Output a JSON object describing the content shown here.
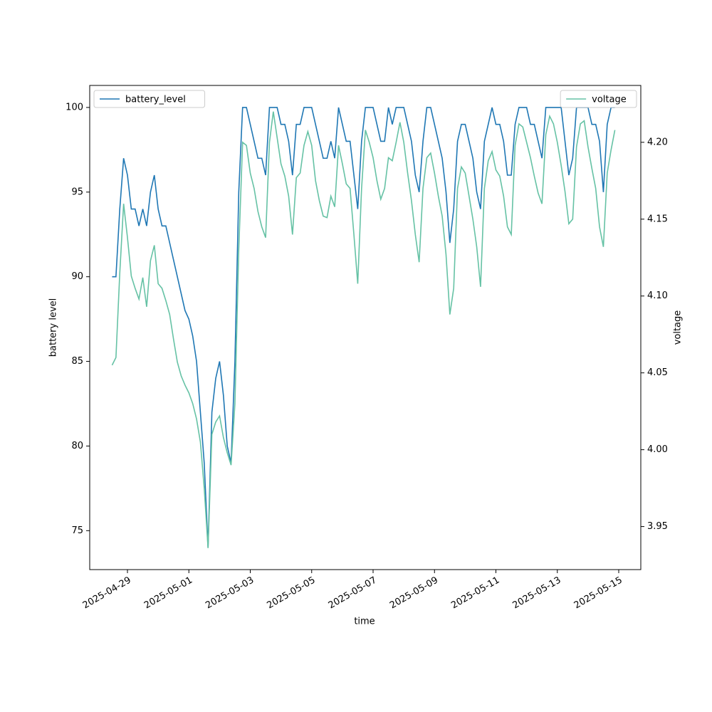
{
  "chart_data": {
    "type": "line",
    "x_label": "time",
    "y_label": "battery level",
    "y2_label": "voltage",
    "x": [
      "2025-04-28T12:00",
      "2025-04-28T15:00",
      "2025-04-28T18:00",
      "2025-04-28T21:00",
      "2025-04-29T00:00",
      "2025-04-29T03:00",
      "2025-04-29T06:00",
      "2025-04-29T09:00",
      "2025-04-29T12:00",
      "2025-04-29T15:00",
      "2025-04-29T18:00",
      "2025-04-29T21:00",
      "2025-04-30T00:00",
      "2025-04-30T03:00",
      "2025-04-30T06:00",
      "2025-04-30T09:00",
      "2025-04-30T12:00",
      "2025-04-30T15:00",
      "2025-04-30T18:00",
      "2025-04-30T21:00",
      "2025-05-01T00:00",
      "2025-05-01T03:00",
      "2025-05-01T06:00",
      "2025-05-01T09:00",
      "2025-05-01T12:00",
      "2025-05-01T15:00",
      "2025-05-01T18:00",
      "2025-05-01T21:00",
      "2025-05-02T00:00",
      "2025-05-02T03:00",
      "2025-05-02T06:00",
      "2025-05-02T09:00",
      "2025-05-02T12:00",
      "2025-05-02T15:00",
      "2025-05-02T18:00",
      "2025-05-02T21:00",
      "2025-05-03T00:00",
      "2025-05-03T03:00",
      "2025-05-03T06:00",
      "2025-05-03T09:00",
      "2025-05-03T12:00",
      "2025-05-03T15:00",
      "2025-05-03T18:00",
      "2025-05-03T21:00",
      "2025-05-04T00:00",
      "2025-05-04T03:00",
      "2025-05-04T06:00",
      "2025-05-04T09:00",
      "2025-05-04T12:00",
      "2025-05-04T15:00",
      "2025-05-04T18:00",
      "2025-05-04T21:00",
      "2025-05-05T00:00",
      "2025-05-05T03:00",
      "2025-05-05T06:00",
      "2025-05-05T09:00",
      "2025-05-05T12:00",
      "2025-05-05T15:00",
      "2025-05-05T18:00",
      "2025-05-05T21:00",
      "2025-05-06T00:00",
      "2025-05-06T03:00",
      "2025-05-06T06:00",
      "2025-05-06T09:00",
      "2025-05-06T12:00",
      "2025-05-06T15:00",
      "2025-05-06T18:00",
      "2025-05-06T21:00",
      "2025-05-07T00:00",
      "2025-05-07T03:00",
      "2025-05-07T06:00",
      "2025-05-07T09:00",
      "2025-05-07T12:00",
      "2025-05-07T15:00",
      "2025-05-07T18:00",
      "2025-05-07T21:00",
      "2025-05-08T00:00",
      "2025-05-08T03:00",
      "2025-05-08T06:00",
      "2025-05-08T09:00",
      "2025-05-08T12:00",
      "2025-05-08T15:00",
      "2025-05-08T18:00",
      "2025-05-08T21:00",
      "2025-05-09T00:00",
      "2025-05-09T03:00",
      "2025-05-09T06:00",
      "2025-05-09T09:00",
      "2025-05-09T12:00",
      "2025-05-09T15:00",
      "2025-05-09T18:00",
      "2025-05-09T21:00",
      "2025-05-10T00:00",
      "2025-05-10T03:00",
      "2025-05-10T06:00",
      "2025-05-10T09:00",
      "2025-05-10T12:00",
      "2025-05-10T15:00",
      "2025-05-10T18:00",
      "2025-05-10T21:00",
      "2025-05-11T00:00",
      "2025-05-11T03:00",
      "2025-05-11T06:00",
      "2025-05-11T09:00",
      "2025-05-11T12:00",
      "2025-05-11T15:00",
      "2025-05-11T18:00",
      "2025-05-11T21:00",
      "2025-05-12T00:00",
      "2025-05-12T03:00",
      "2025-05-12T06:00",
      "2025-05-12T09:00",
      "2025-05-12T12:00",
      "2025-05-12T15:00",
      "2025-05-12T18:00",
      "2025-05-12T21:00",
      "2025-05-13T00:00",
      "2025-05-13T03:00",
      "2025-05-13T06:00",
      "2025-05-13T09:00",
      "2025-05-13T12:00",
      "2025-05-13T15:00",
      "2025-05-13T18:00",
      "2025-05-13T21:00",
      "2025-05-14T00:00",
      "2025-05-14T03:00",
      "2025-05-14T06:00",
      "2025-05-14T09:00",
      "2025-05-14T12:00",
      "2025-05-14T15:00",
      "2025-05-14T18:00",
      "2025-05-14T21:00"
    ],
    "series": [
      {
        "name": "battery_level",
        "color": "#1f77b4",
        "axis": "y",
        "legend_loc": "upper left",
        "values": [
          90,
          90,
          94,
          97,
          96,
          94,
          94,
          93,
          94,
          93,
          95,
          96,
          94,
          93,
          93,
          92,
          91,
          90,
          89,
          88,
          87.5,
          86.5,
          85,
          82,
          79,
          74,
          82,
          84,
          85,
          83,
          80,
          79,
          85,
          95,
          100,
          100,
          99,
          98,
          97,
          97,
          96,
          100,
          100,
          100,
          99,
          99,
          98,
          96,
          99,
          99,
          100,
          100,
          100,
          99,
          98,
          97,
          97,
          98,
          97,
          100,
          99,
          98,
          98,
          96,
          94,
          98,
          100,
          100,
          100,
          99,
          98,
          98,
          100,
          99,
          100,
          100,
          100,
          99,
          98,
          96,
          95,
          98,
          100,
          100,
          99,
          98,
          97,
          95,
          92,
          94,
          98,
          99,
          99,
          98,
          97,
          95,
          94,
          98,
          99,
          100,
          99,
          99,
          98,
          96,
          96,
          99,
          100,
          100,
          100,
          99,
          99,
          98,
          97,
          100,
          100,
          100,
          100,
          100,
          98,
          96,
          97,
          100,
          100,
          100,
          100,
          99,
          99,
          98,
          95,
          99,
          100,
          100
        ]
      },
      {
        "name": "voltage",
        "color": "#66c2a5",
        "axis": "y2",
        "legend_loc": "upper right",
        "values": [
          4.055,
          4.06,
          4.115,
          4.16,
          4.138,
          4.113,
          4.105,
          4.098,
          4.112,
          4.093,
          4.123,
          4.133,
          4.108,
          4.105,
          4.097,
          4.088,
          4.072,
          4.057,
          4.048,
          4.042,
          4.037,
          4.03,
          4.02,
          4.005,
          3.975,
          3.936,
          4.01,
          4.018,
          4.022,
          4.008,
          3.998,
          3.99,
          4.03,
          4.13,
          4.2,
          4.198,
          4.18,
          4.17,
          4.155,
          4.145,
          4.138,
          4.2,
          4.22,
          4.203,
          4.186,
          4.178,
          4.165,
          4.14,
          4.177,
          4.18,
          4.198,
          4.207,
          4.198,
          4.175,
          4.162,
          4.152,
          4.151,
          4.165,
          4.158,
          4.198,
          4.186,
          4.173,
          4.17,
          4.14,
          4.108,
          4.17,
          4.208,
          4.2,
          4.19,
          4.175,
          4.163,
          4.17,
          4.19,
          4.188,
          4.2,
          4.213,
          4.2,
          4.18,
          4.162,
          4.14,
          4.122,
          4.17,
          4.19,
          4.193,
          4.18,
          4.165,
          4.152,
          4.127,
          4.088,
          4.105,
          4.17,
          4.184,
          4.18,
          4.165,
          4.15,
          4.132,
          4.106,
          4.17,
          4.188,
          4.194,
          4.182,
          4.178,
          4.165,
          4.145,
          4.14,
          4.198,
          4.212,
          4.21,
          4.2,
          4.19,
          4.178,
          4.167,
          4.16,
          4.205,
          4.217,
          4.212,
          4.2,
          4.185,
          4.168,
          4.147,
          4.15,
          4.197,
          4.212,
          4.214,
          4.197,
          4.183,
          4.17,
          4.145,
          4.132,
          4.18,
          4.195,
          4.208
        ]
      }
    ],
    "xlim": [
      "2025-04-27T18:30",
      "2025-05-15T17:15"
    ],
    "xticks": [
      "2025-04-29",
      "2025-05-01",
      "2025-05-03",
      "2025-05-05",
      "2025-05-07",
      "2025-05-09",
      "2025-05-11",
      "2025-05-13",
      "2025-05-15"
    ],
    "ylim": [
      72.7,
      101.3
    ],
    "yticks": [
      75,
      80,
      85,
      90,
      95,
      100
    ],
    "y2lim": [
      3.922,
      4.237
    ],
    "y2ticks": [
      3.95,
      {
        "value": 4.0,
        "label": "4.00"
      },
      4.05,
      {
        "value": 4.1,
        "label": "4.10"
      },
      4.15,
      {
        "value": 4.2,
        "label": "4.20"
      }
    ],
    "grid": false
  }
}
